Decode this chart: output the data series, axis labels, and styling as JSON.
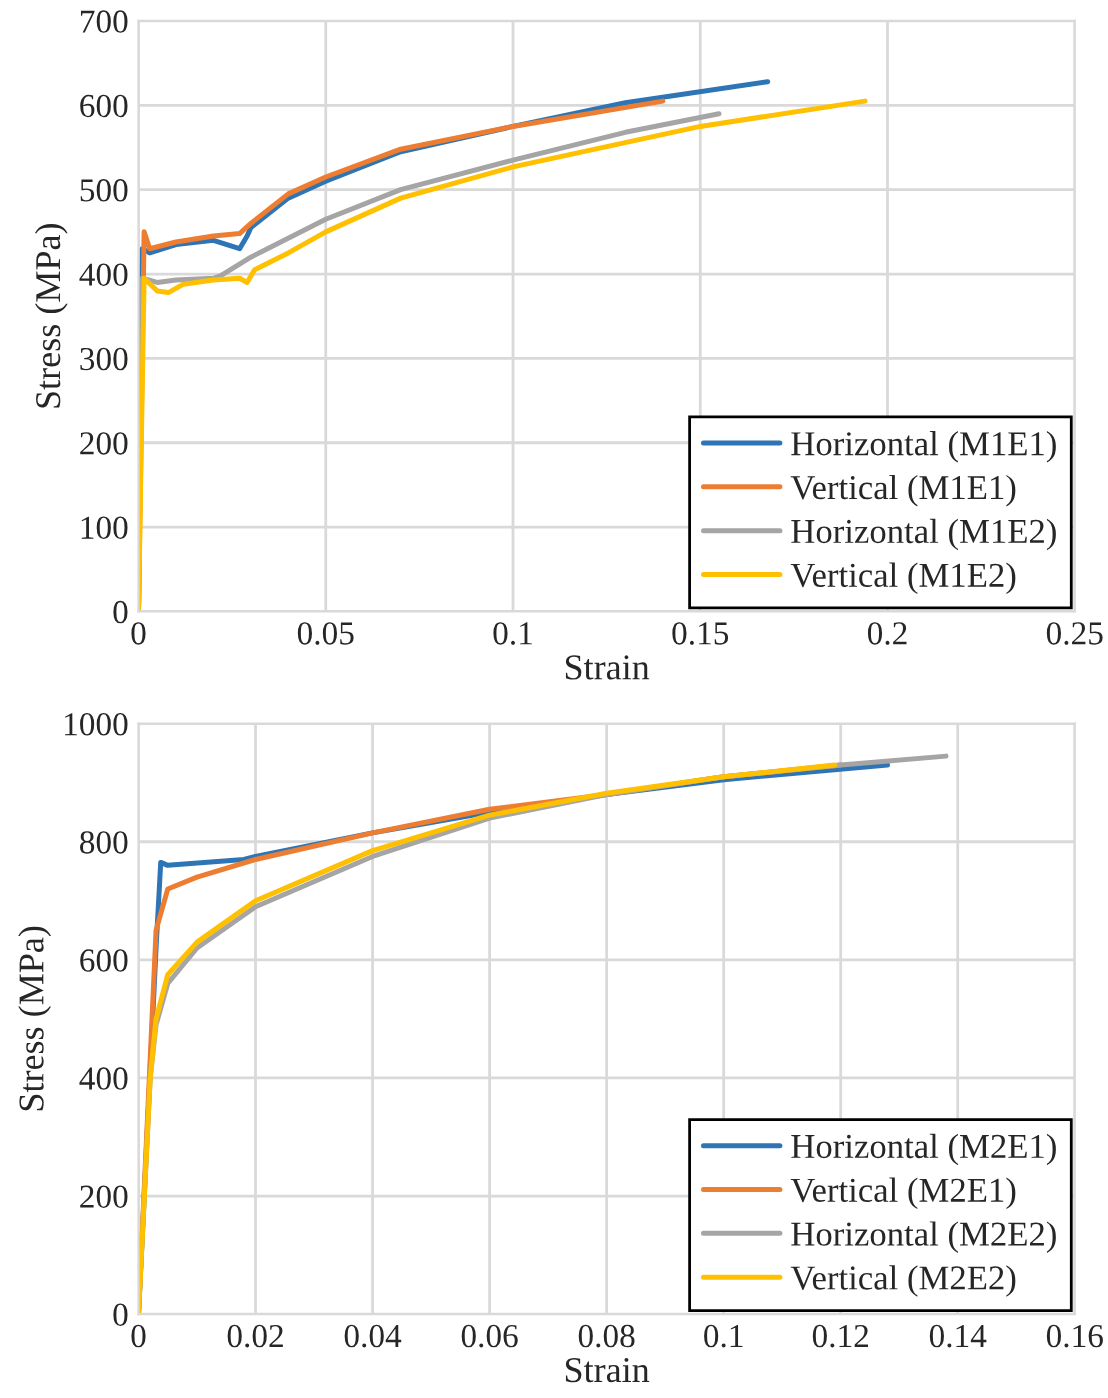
{
  "chart_data": [
    {
      "type": "line",
      "xlabel": "Strain",
      "ylabel": "Stress (MPa)",
      "xlim": [
        0,
        0.25
      ],
      "ylim": [
        0,
        700
      ],
      "xticks": [
        0,
        0.05,
        0.1,
        0.15,
        0.2,
        0.25
      ],
      "yticks": [
        0,
        100,
        200,
        300,
        400,
        500,
        600,
        700
      ],
      "grid": true,
      "legend": "bottom right",
      "series": [
        {
          "name": "Horizontal (M1E1)",
          "color": "#2e75b6",
          "x": [
            0,
            0.001,
            0.003,
            0.01,
            0.02,
            0.027,
            0.029,
            0.03,
            0.04,
            0.05,
            0.07,
            0.1,
            0.13,
            0.168
          ],
          "values": [
            0,
            430,
            425,
            435,
            440,
            430,
            445,
            455,
            490,
            510,
            545,
            575,
            603,
            628
          ]
        },
        {
          "name": "Vertical (M1E1)",
          "color": "#ed7d31",
          "x": [
            0,
            0.0015,
            0.003,
            0.01,
            0.02,
            0.027,
            0.03,
            0.04,
            0.05,
            0.07,
            0.1,
            0.14
          ],
          "values": [
            0,
            450,
            430,
            438,
            445,
            448,
            460,
            495,
            515,
            548,
            575,
            605
          ]
        },
        {
          "name": "Horizontal (M1E2)",
          "color": "#a5a5a5",
          "x": [
            0,
            0.001,
            0.005,
            0.01,
            0.02,
            0.022,
            0.03,
            0.05,
            0.07,
            0.1,
            0.13,
            0.155
          ],
          "values": [
            0,
            395,
            390,
            393,
            395,
            398,
            420,
            465,
            500,
            535,
            568,
            590
          ]
        },
        {
          "name": "Vertical (M1E2)",
          "color": "#ffc000",
          "x": [
            0,
            0.0015,
            0.005,
            0.008,
            0.012,
            0.02,
            0.027,
            0.029,
            0.031,
            0.04,
            0.05,
            0.07,
            0.1,
            0.15,
            0.194
          ],
          "values": [
            0,
            395,
            380,
            378,
            388,
            393,
            395,
            390,
            405,
            425,
            450,
            490,
            527,
            575,
            605
          ]
        }
      ]
    },
    {
      "type": "line",
      "xlabel": "Strain",
      "ylabel": "Stress (MPa)",
      "xlim": [
        0,
        0.16
      ],
      "ylim": [
        0,
        1000
      ],
      "xticks": [
        0,
        0.02,
        0.04,
        0.06,
        0.08,
        0.1,
        0.12,
        0.14,
        0.16
      ],
      "yticks": [
        0,
        200,
        400,
        600,
        800,
        1000
      ],
      "grid": true,
      "legend": "bottom right",
      "series": [
        {
          "name": "Horizontal (M2E1)",
          "color": "#2e75b6",
          "x": [
            0,
            0.003,
            0.0038,
            0.005,
            0.018,
            0.02,
            0.04,
            0.06,
            0.08,
            0.1,
            0.128
          ],
          "values": [
            0,
            620,
            765,
            760,
            770,
            775,
            815,
            850,
            880,
            905,
            930
          ]
        },
        {
          "name": "Vertical (M2E1)",
          "color": "#ed7d31",
          "x": [
            0,
            0.003,
            0.005,
            0.01,
            0.02,
            0.04,
            0.06,
            0.08,
            0.1,
            0.12
          ],
          "values": [
            0,
            650,
            720,
            740,
            770,
            815,
            855,
            880,
            910,
            930
          ]
        },
        {
          "name": "Horizontal (M2E2)",
          "color": "#a5a5a5",
          "x": [
            0,
            0.002,
            0.003,
            0.005,
            0.01,
            0.02,
            0.04,
            0.06,
            0.08,
            0.1,
            0.12,
            0.138
          ],
          "values": [
            0,
            400,
            490,
            560,
            620,
            690,
            775,
            840,
            880,
            910,
            930,
            945
          ]
        },
        {
          "name": "Vertical (M2E2)",
          "color": "#ffc000",
          "x": [
            0,
            0.002,
            0.003,
            0.005,
            0.01,
            0.02,
            0.04,
            0.06,
            0.08,
            0.1,
            0.119
          ],
          "values": [
            0,
            400,
            500,
            575,
            630,
            700,
            785,
            845,
            882,
            910,
            930
          ]
        }
      ]
    }
  ]
}
